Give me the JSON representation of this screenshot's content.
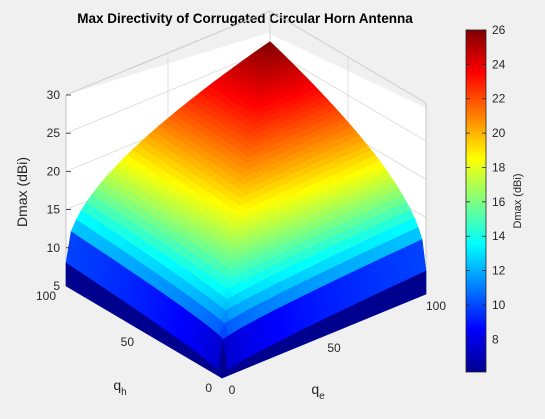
{
  "chart_data": {
    "type": "surface",
    "title": "Max Directivity of Corrugated Circular Horn Antenna",
    "zlabel": "Dmax (dBi)",
    "x_axis": {
      "label": "q",
      "subscript": "e",
      "ticks": [
        "0",
        "50",
        "100"
      ],
      "range": [
        0,
        100
      ]
    },
    "y_axis": {
      "label": "q",
      "subscript": "h",
      "ticks": [
        "0",
        "50",
        "100"
      ],
      "range": [
        0,
        100
      ]
    },
    "z_axis": {
      "ticks": [
        "5",
        "10",
        "15",
        "20",
        "25",
        "30"
      ],
      "range": [
        5,
        30
      ]
    },
    "surface_samples": [
      {
        "qe": 0,
        "qh": 0,
        "dmax": 5.2
      },
      {
        "qe": 100,
        "qh": 0,
        "dmax": 8
      },
      {
        "qe": 0,
        "qh": 100,
        "dmax": 8
      },
      {
        "qe": 50,
        "qh": 50,
        "dmax": 21
      },
      {
        "qe": 100,
        "qh": 100,
        "dmax": 26
      }
    ],
    "colorbar": {
      "label": "Dmax (dBi)",
      "ticks": [
        "8",
        "10",
        "12",
        "14",
        "16",
        "18",
        "20",
        "22",
        "24",
        "26"
      ],
      "range": [
        6.1,
        26
      ],
      "colormap": "jet"
    },
    "grid": true
  }
}
